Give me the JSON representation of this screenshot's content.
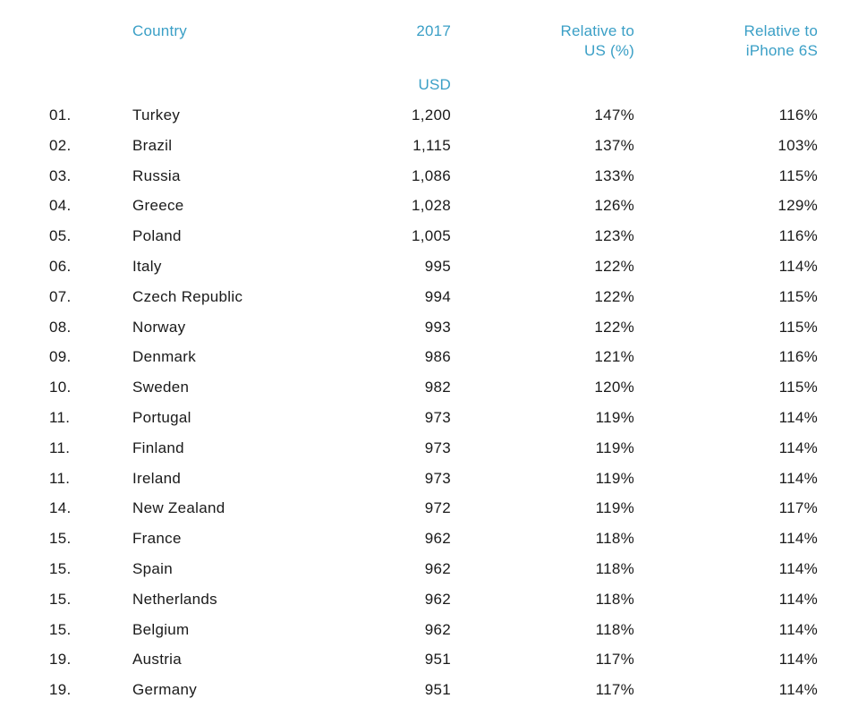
{
  "chart_data": {
    "type": "table",
    "headers": {
      "country": "Country",
      "year": "2017",
      "unit": "USD",
      "rel_us": "Relative to\nUS (%)",
      "rel_6s": "Relative to\niPhone 6S"
    },
    "rows": [
      {
        "rank": "01.",
        "country": "Turkey",
        "price": "1,200",
        "rel_us": "147%",
        "rel_6s": "116%"
      },
      {
        "rank": "02.",
        "country": "Brazil",
        "price": "1,115",
        "rel_us": "137%",
        "rel_6s": "103%"
      },
      {
        "rank": "03.",
        "country": "Russia",
        "price": "1,086",
        "rel_us": "133%",
        "rel_6s": "115%"
      },
      {
        "rank": "04.",
        "country": "Greece",
        "price": "1,028",
        "rel_us": "126%",
        "rel_6s": "129%"
      },
      {
        "rank": "05.",
        "country": "Poland",
        "price": "1,005",
        "rel_us": "123%",
        "rel_6s": "116%"
      },
      {
        "rank": "06.",
        "country": "Italy",
        "price": "995",
        "rel_us": "122%",
        "rel_6s": "114%"
      },
      {
        "rank": "07.",
        "country": "Czech Republic",
        "price": "994",
        "rel_us": "122%",
        "rel_6s": "115%"
      },
      {
        "rank": "08.",
        "country": "Norway",
        "price": "993",
        "rel_us": "122%",
        "rel_6s": "115%"
      },
      {
        "rank": "09.",
        "country": "Denmark",
        "price": "986",
        "rel_us": "121%",
        "rel_6s": "116%"
      },
      {
        "rank": "10.",
        "country": "Sweden",
        "price": "982",
        "rel_us": "120%",
        "rel_6s": "115%"
      },
      {
        "rank": "11.",
        "country": "Portugal",
        "price": "973",
        "rel_us": "119%",
        "rel_6s": "114%"
      },
      {
        "rank": "11.",
        "country": "Finland",
        "price": "973",
        "rel_us": "119%",
        "rel_6s": "114%"
      },
      {
        "rank": "11.",
        "country": "Ireland",
        "price": "973",
        "rel_us": "119%",
        "rel_6s": "114%"
      },
      {
        "rank": "14.",
        "country": "New Zealand",
        "price": "972",
        "rel_us": "119%",
        "rel_6s": "117%"
      },
      {
        "rank": "15.",
        "country": "France",
        "price": "962",
        "rel_us": "118%",
        "rel_6s": "114%"
      },
      {
        "rank": "15.",
        "country": "Spain",
        "price": "962",
        "rel_us": "118%",
        "rel_6s": "114%"
      },
      {
        "rank": "15.",
        "country": "Netherlands",
        "price": "962",
        "rel_us": "118%",
        "rel_6s": "114%"
      },
      {
        "rank": "15.",
        "country": "Belgium",
        "price": "962",
        "rel_us": "118%",
        "rel_6s": "114%"
      },
      {
        "rank": "19.",
        "country": "Austria",
        "price": "951",
        "rel_us": "117%",
        "rel_6s": "114%"
      },
      {
        "rank": "19.",
        "country": "Germany",
        "price": "951",
        "rel_us": "117%",
        "rel_6s": "114%"
      }
    ]
  },
  "colors": {
    "header": "#3a9fc6",
    "text": "#1a1a1a",
    "background": "#ffffff"
  }
}
